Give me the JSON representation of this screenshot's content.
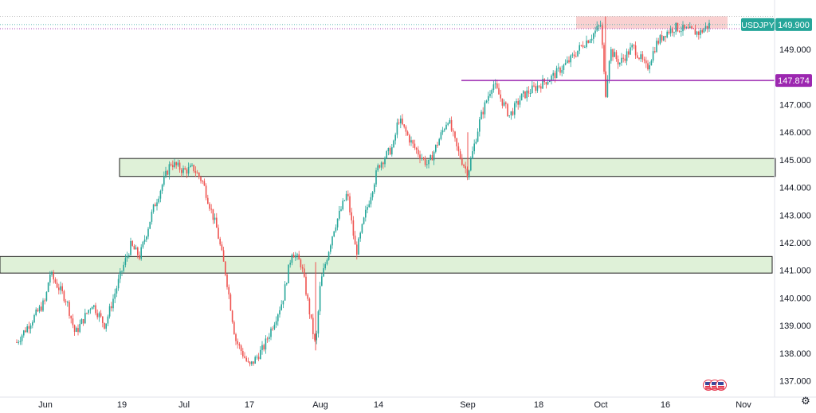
{
  "symbol_label": "USDJPY",
  "current_price_label": "149.900",
  "level_price_label": "147.874",
  "colors": {
    "up": "#26a69a",
    "down": "#ef5350",
    "level": "#9c27b0",
    "zone_fill": "#dff1d8",
    "zone_border": "#1f1f1f",
    "resistance_fill": "#f8c9c9",
    "symbol_bg": "#26a69a"
  },
  "icons": [
    "settings-gear-icon",
    "economic-events-flag-icon"
  ],
  "chart_data": {
    "type": "candlestick",
    "title": "",
    "xlabel": "",
    "ylabel": "",
    "ylim": [
      136.8,
      150.2
    ],
    "y_ticks": [
      "137.000",
      "138.000",
      "139.000",
      "140.000",
      "141.000",
      "142.000",
      "143.000",
      "144.000",
      "145.000",
      "146.000",
      "147.000",
      "148.000",
      "149.000"
    ],
    "x_ticks": [
      "Jun",
      "19",
      "Jul",
      "17",
      "Aug",
      "14",
      "Sep",
      "18",
      "Oct",
      "16",
      "Nov"
    ],
    "current_price": 149.9,
    "horizontal_level": 147.874,
    "support_zones": [
      {
        "low": 144.4,
        "high": 145.05
      },
      {
        "low": 140.9,
        "high": 141.5
      }
    ],
    "resistance_zone": {
      "low": 149.75,
      "high": 150.2
    },
    "close_path": [
      [
        "May 29",
        138.4
      ],
      [
        "Jun 1",
        139.9
      ],
      [
        "Jun 2",
        140.9
      ],
      [
        "Jun 6",
        139.9
      ],
      [
        "Jun 8",
        138.7
      ],
      [
        "Jun 12",
        139.8
      ],
      [
        "Jun 15",
        139.0
      ],
      [
        "Jun 19",
        141.0
      ],
      [
        "Jun 21",
        141.9
      ],
      [
        "Jun 23",
        141.5
      ],
      [
        "Jun 26",
        143.2
      ],
      [
        "Jun 29",
        144.5
      ],
      [
        "Jun 30",
        144.9
      ],
      [
        "Jul 3",
        144.6
      ],
      [
        "Jul 5",
        144.7
      ],
      [
        "Jul 7",
        144.2
      ],
      [
        "Jul 10",
        142.5
      ],
      [
        "Jul 12",
        140.8
      ],
      [
        "Jul 14",
        138.5
      ],
      [
        "Jul 17",
        137.5
      ],
      [
        "Jul 20",
        138.2
      ],
      [
        "Jul 24",
        139.9
      ],
      [
        "Jul 26",
        141.7
      ],
      [
        "Jul 28",
        141.2
      ],
      [
        "Jul 31",
        138.2
      ],
      [
        "Aug 1",
        140.5
      ],
      [
        "Aug 4",
        142.5
      ],
      [
        "Aug 7",
        143.8
      ],
      [
        "Aug 9",
        141.6
      ],
      [
        "Aug 11",
        143.0
      ],
      [
        "Aug 14",
        144.8
      ],
      [
        "Aug 17",
        145.5
      ],
      [
        "Aug 18",
        146.5
      ],
      [
        "Aug 21",
        145.5
      ],
      [
        "Aug 24",
        144.8
      ],
      [
        "Aug 28",
        146.5
      ],
      [
        "Aug 30",
        145.3
      ],
      [
        "Sep 1",
        144.5
      ],
      [
        "Sep 4",
        146.5
      ],
      [
        "Sep 7",
        147.8
      ],
      [
        "Sep 9",
        147.2
      ],
      [
        "Sep 11",
        146.6
      ],
      [
        "Sep 14",
        147.3
      ],
      [
        "Sep 18",
        147.7
      ],
      [
        "Sep 21",
        148.0
      ],
      [
        "Sep 25",
        148.6
      ],
      [
        "Sep 28",
        149.2
      ],
      [
        "Sep 30",
        149.5
      ],
      [
        "Oct 2",
        149.9
      ],
      [
        "Oct 3",
        147.3
      ],
      [
        "Oct 4",
        149.0
      ],
      [
        "Oct 6",
        148.5
      ],
      [
        "Oct 9",
        149.1
      ],
      [
        "Oct 12",
        148.3
      ],
      [
        "Oct 14",
        149.2
      ],
      [
        "Oct 16",
        149.6
      ],
      [
        "Oct 18",
        149.8
      ],
      [
        "Oct 20",
        149.7
      ],
      [
        "Oct 23",
        149.6
      ],
      [
        "Oct 25",
        149.9
      ]
    ]
  }
}
